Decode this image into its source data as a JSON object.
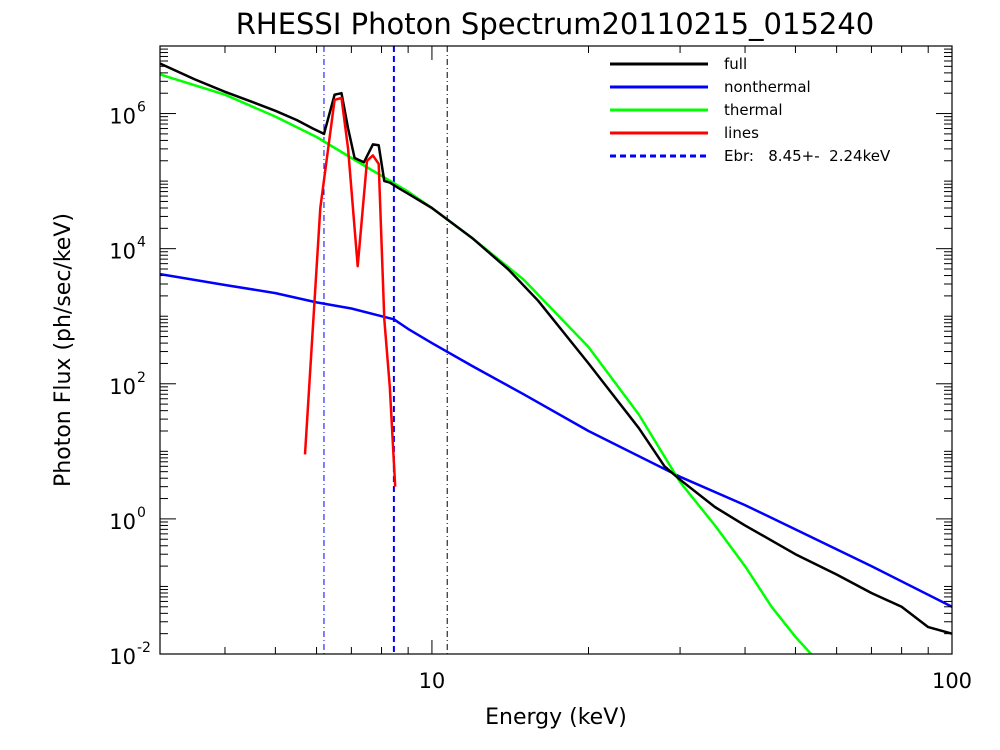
{
  "chart_data": {
    "type": "line",
    "title": "RHESSI Photon Spectrum20110215_015240",
    "xlabel": "Energy (keV)",
    "ylabel": "Photon Flux (ph/sec/keV)",
    "xscale": "log",
    "yscale": "log",
    "xlim": [
      3.0,
      100
    ],
    "ylim": [
      0.01,
      10000000
    ],
    "x_ticks": [
      {
        "value": 10,
        "label": "10"
      },
      {
        "value": 100,
        "label": "100"
      }
    ],
    "y_ticks": [
      {
        "value": 0.01,
        "base": "10",
        "exp": "-2"
      },
      {
        "value": 1,
        "base": "10",
        "exp": "0"
      },
      {
        "value": 100,
        "base": "10",
        "exp": "2"
      },
      {
        "value": 10000,
        "base": "10",
        "exp": "4"
      },
      {
        "value": 1000000,
        "base": "10",
        "exp": "6"
      }
    ],
    "legend_position": "top-right",
    "series": [
      {
        "name": "full",
        "color": "#000000",
        "style": "solid",
        "x": [
          3.0,
          3.5,
          4.0,
          4.5,
          5.0,
          5.5,
          5.9,
          6.2,
          6.5,
          6.7,
          6.9,
          7.1,
          7.4,
          7.7,
          7.9,
          8.1,
          8.3,
          8.6,
          9.0,
          10.0,
          12.0,
          14.0,
          16.0,
          20.0,
          25.0,
          28.0,
          30.0,
          35.0,
          40.0,
          50.0,
          60.0,
          70.0,
          80.0,
          90.0,
          100.0
        ],
        "y": [
          5500000,
          3200000,
          2100000,
          1500000,
          1100000,
          800000,
          600000,
          500000,
          1900000,
          2000000,
          600000,
          220000,
          190000,
          350000,
          340000,
          100000,
          95000,
          80000,
          65000,
          40000,
          14000,
          5000,
          1700,
          200,
          22,
          6,
          3.8,
          1.5,
          0.8,
          0.3,
          0.15,
          0.08,
          0.05,
          0.025,
          0.02
        ]
      },
      {
        "name": "nonthermal",
        "color": "#0000ff",
        "style": "solid",
        "x": [
          3.0,
          4.0,
          5.0,
          6.0,
          7.0,
          8.0,
          8.45,
          9.0,
          10.0,
          12.0,
          15.0,
          20.0,
          30.0,
          40.0,
          50.0,
          70.0,
          100.0
        ],
        "y": [
          4200,
          2900,
          2200,
          1600,
          1300,
          1000,
          900,
          650,
          400,
          180,
          70,
          20,
          4.2,
          1.6,
          0.7,
          0.2,
          0.05
        ]
      },
      {
        "name": "thermal",
        "color": "#00ff00",
        "style": "solid",
        "x": [
          3.0,
          4.0,
          5.0,
          6.0,
          7.0,
          8.0,
          9.0,
          10.0,
          12.0,
          15.0,
          20.0,
          25.0,
          30.0,
          35.0,
          40.0,
          45.0,
          50.0,
          55.0
        ],
        "y": [
          3800000,
          1900000,
          900000,
          450000,
          220000,
          120000,
          70000,
          40000,
          14000,
          3500,
          350,
          35,
          3.5,
          0.8,
          0.2,
          0.05,
          0.018,
          0.008
        ]
      },
      {
        "name": "lines",
        "color": "#ff0000",
        "style": "solid",
        "x": [
          5.7,
          6.1,
          6.5,
          6.7,
          6.9,
          7.2,
          7.5,
          7.7,
          7.9,
          8.1,
          8.3,
          8.5
        ],
        "y": [
          9,
          40000,
          1600000,
          1700000,
          300000,
          5500,
          200000,
          240000,
          180000,
          900,
          90,
          3
        ]
      }
    ],
    "vertical_lines": [
      {
        "x": 6.2,
        "color": "#0000ff",
        "style": "dash-dot"
      },
      {
        "x": 8.45,
        "color": "#0000ff",
        "style": "dashed"
      },
      {
        "x": 10.7,
        "color": "#000000",
        "style": "dash-dot"
      }
    ],
    "legend": [
      {
        "label": "full",
        "color": "#000000",
        "style": "solid"
      },
      {
        "label": "nonthermal",
        "color": "#0000ff",
        "style": "solid"
      },
      {
        "label": "thermal",
        "color": "#00ff00",
        "style": "solid"
      },
      {
        "label": "lines",
        "color": "#ff0000",
        "style": "solid"
      },
      {
        "label": "Ebr:   8.45+-  2.24keV",
        "color": "#0000ff",
        "style": "dashed"
      }
    ]
  }
}
